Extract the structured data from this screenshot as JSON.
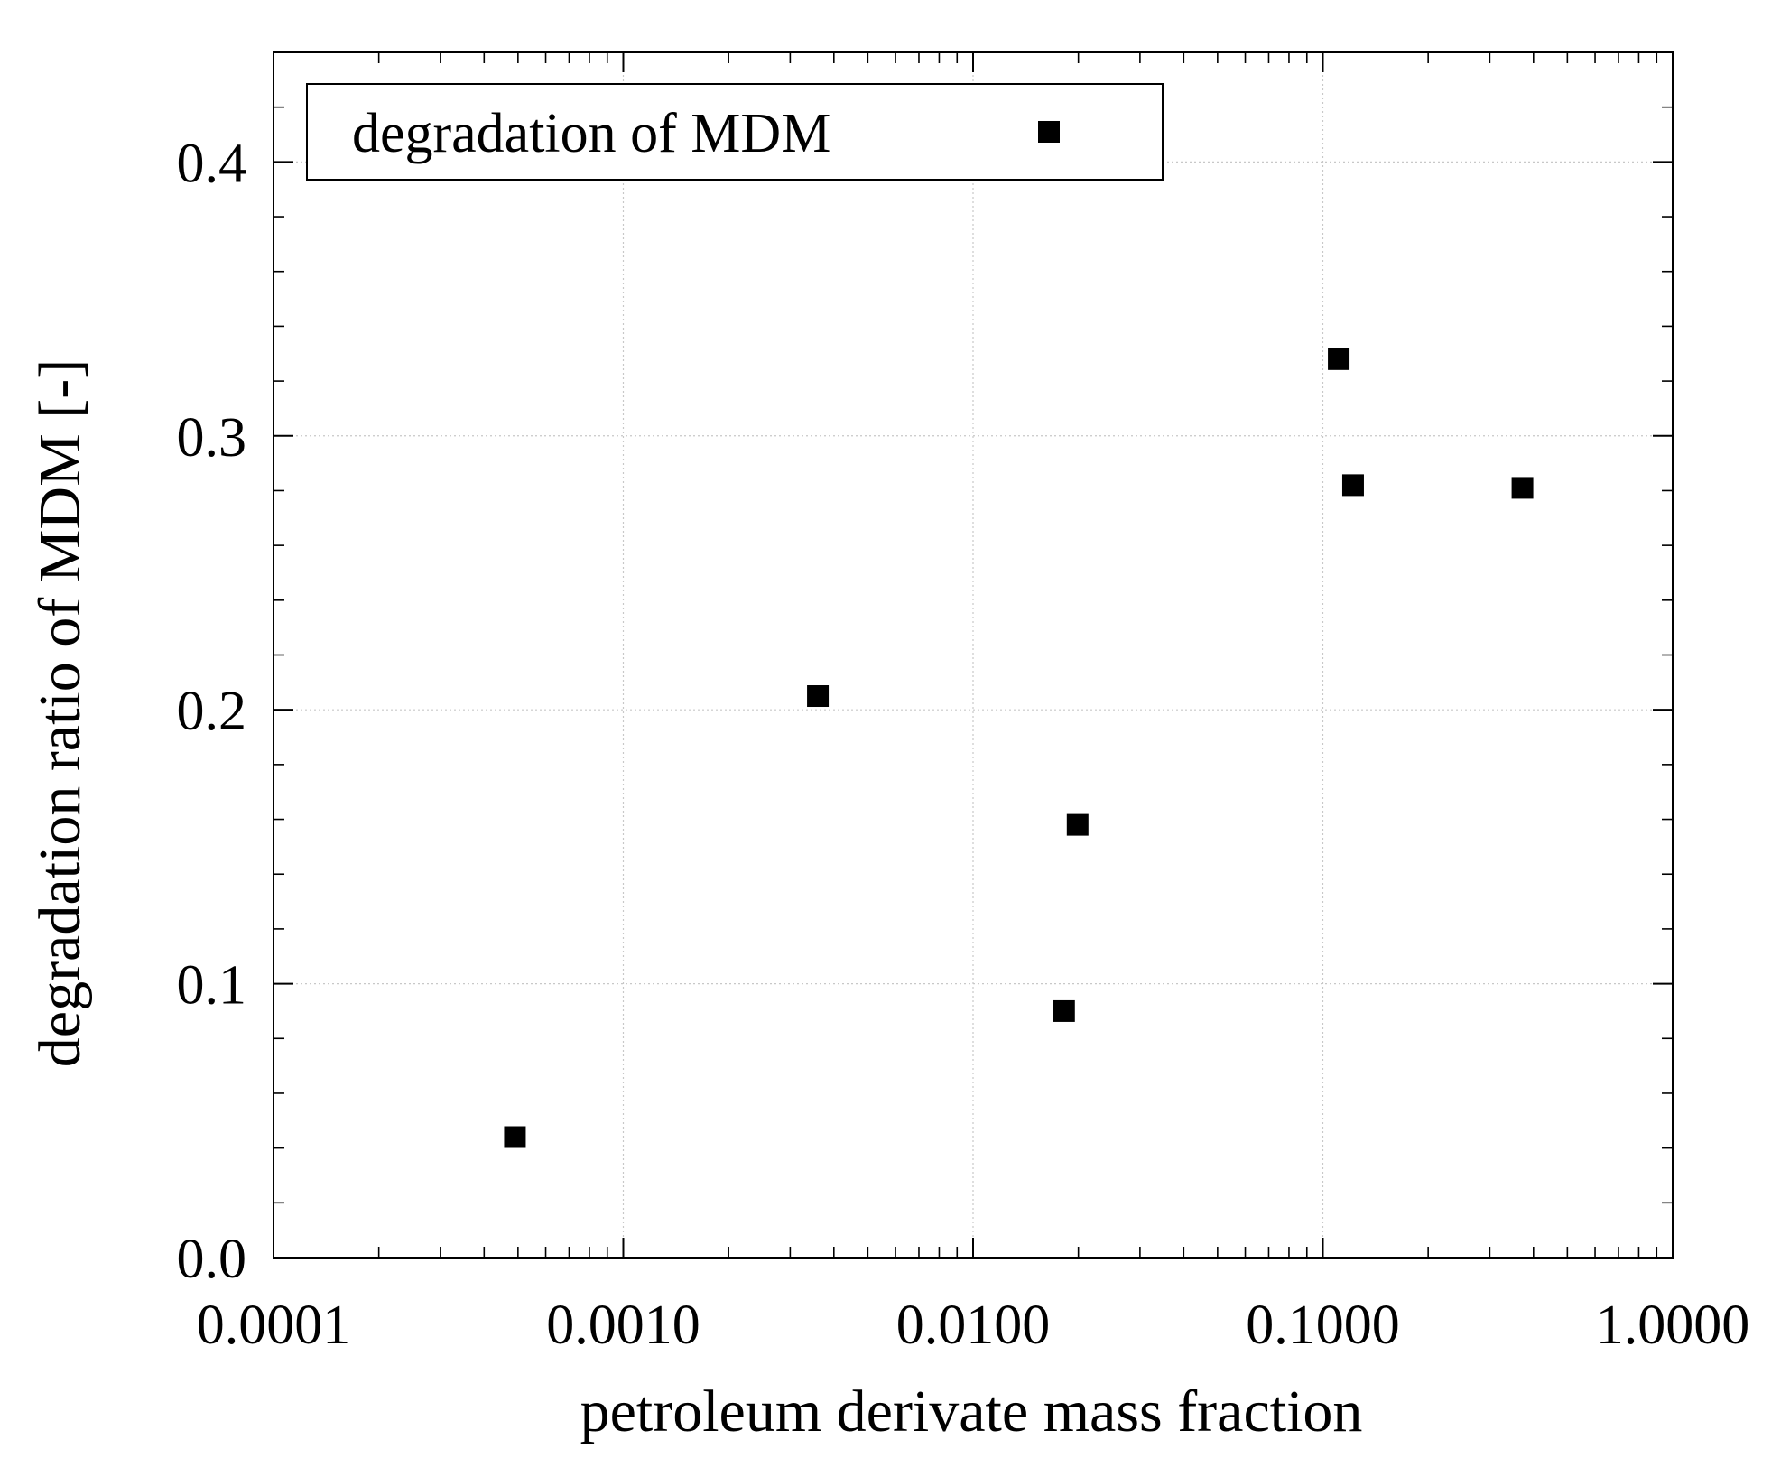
{
  "chart_data": {
    "type": "scatter",
    "title": "",
    "xlabel": "petroleum derivate mass fraction",
    "ylabel": "degradation ratio of MDM [-]",
    "xscale": "log",
    "xlim": [
      0.0001,
      1.0
    ],
    "ylim": [
      0.0,
      0.44
    ],
    "grid": true,
    "legend_position": "top-left",
    "x_tick_values": [
      0.0001,
      0.001,
      0.01,
      0.1,
      1.0
    ],
    "x_tick_labels": [
      "0.0001",
      "0.0010",
      "0.0100",
      "0.1000",
      "1.0000"
    ],
    "y_tick_values": [
      0.0,
      0.1,
      0.2,
      0.3,
      0.4
    ],
    "y_tick_labels": [
      "0.0",
      "0.1",
      "0.2",
      "0.3",
      "0.4"
    ],
    "y_minor_step": 0.02,
    "series": [
      {
        "name": "degradation of MDM",
        "marker": "square",
        "color": "#000000",
        "points": [
          {
            "x": 0.00049,
            "y": 0.044
          },
          {
            "x": 0.0036,
            "y": 0.205
          },
          {
            "x": 0.0182,
            "y": 0.09
          },
          {
            "x": 0.0199,
            "y": 0.158
          },
          {
            "x": 0.111,
            "y": 0.328
          },
          {
            "x": 0.122,
            "y": 0.282
          },
          {
            "x": 0.372,
            "y": 0.281
          }
        ]
      }
    ]
  }
}
